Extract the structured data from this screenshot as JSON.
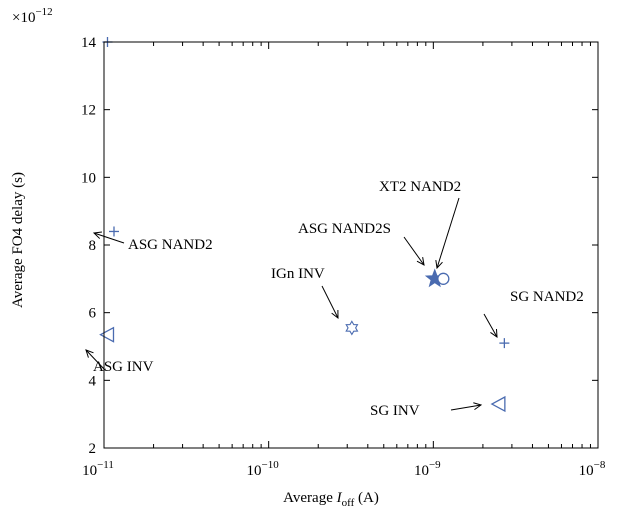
{
  "chart_data": {
    "type": "scatter",
    "title": "",
    "xlabel": "Average I_off (A)",
    "xlabel_parts": {
      "prefix": "Average ",
      "var": "I",
      "sub": "off",
      "suffix": " (A)"
    },
    "ylabel": "Average FO4 delay (s)",
    "y_multiplier_label": "×10",
    "y_multiplier_exp": "−12",
    "xscale": "log",
    "xlim": [
      1e-11,
      1e-08
    ],
    "ylim": [
      2,
      14
    ],
    "grid": false,
    "x_ticks": [
      {
        "value": 1e-11,
        "base": "10",
        "exp": "−11"
      },
      {
        "value": 1e-10,
        "base": "10",
        "exp": "−10"
      },
      {
        "value": 1e-09,
        "base": "10",
        "exp": "−9"
      },
      {
        "value": 1e-08,
        "base": "10",
        "exp": "−8"
      }
    ],
    "y_ticks": [
      "2",
      "4",
      "6",
      "8",
      "10",
      "12",
      "14"
    ],
    "marker_color": "#4a6bb0",
    "points": [
      {
        "label": "ASG NAND2",
        "x": 1.15e-11,
        "y": 8.4,
        "marker": "plus"
      },
      {
        "label": "ASG INV",
        "x": 1.05e-11,
        "y": 5.35,
        "marker": "triangle-left"
      },
      {
        "label": "IGn INV",
        "x": 3.2e-10,
        "y": 5.55,
        "marker": "hexagram"
      },
      {
        "label": "ASG NAND2S",
        "x": 1.02e-09,
        "y": 7.0,
        "marker": "pentagram-filled"
      },
      {
        "label": "XT2 NAND2",
        "x": 1.15e-09,
        "y": 7.0,
        "marker": "circle"
      },
      {
        "label": "SG NAND2",
        "x": 2.7e-09,
        "y": 5.1,
        "marker": "plus"
      },
      {
        "label": "SG INV",
        "x": 2.5e-09,
        "y": 3.3,
        "marker": "triangle-left"
      },
      {
        "label": "",
        "x": 1.05e-11,
        "y": 14.0,
        "marker": "plus"
      }
    ],
    "annotations": [
      {
        "text": "ASG NAND2"
      },
      {
        "text": "ASG INV"
      },
      {
        "text": "IGn INV"
      },
      {
        "text": "ASG NAND2S"
      },
      {
        "text": "XT2 NAND2"
      },
      {
        "text": "SG NAND2"
      },
      {
        "text": "SG INV"
      }
    ]
  }
}
